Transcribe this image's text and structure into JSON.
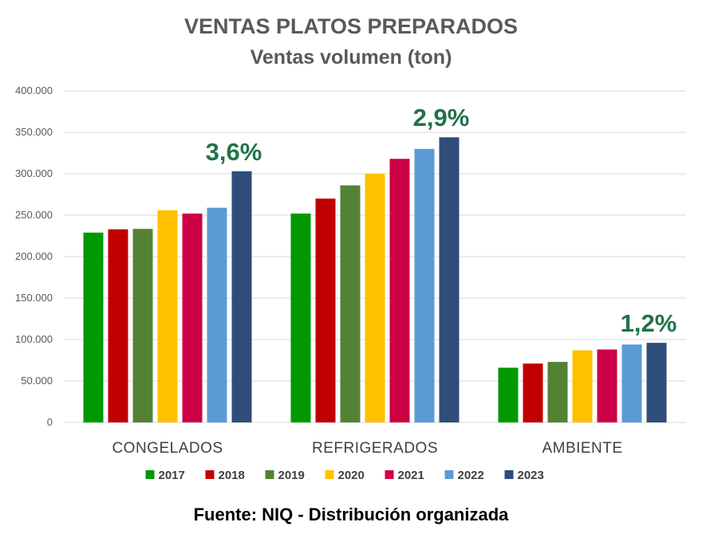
{
  "chart_data": {
    "type": "bar",
    "title": "VENTAS PLATOS PREPARADOS",
    "subtitle": "Ventas volumen (ton)",
    "categories": [
      "CONGELADOS",
      "REFRIGERADOS",
      "AMBIENTE"
    ],
    "series": [
      {
        "name": "2017",
        "color": "#009900",
        "values": [
          229000,
          252000,
          66000
        ]
      },
      {
        "name": "2018",
        "color": "#c00000",
        "values": [
          233000,
          270000,
          71000
        ]
      },
      {
        "name": "2019",
        "color": "#548235",
        "values": [
          233500,
          286000,
          73000
        ]
      },
      {
        "name": "2020",
        "color": "#ffc000",
        "values": [
          256000,
          300000,
          87000
        ]
      },
      {
        "name": "2021",
        "color": "#cc0044",
        "values": [
          252000,
          318000,
          88000
        ]
      },
      {
        "name": "2022",
        "color": "#5b9bd5",
        "values": [
          259000,
          330000,
          94000
        ]
      },
      {
        "name": "2023",
        "color": "#2e4d7b",
        "values": [
          303000,
          344000,
          96000
        ]
      }
    ],
    "ylim": [
      0,
      400000
    ],
    "yticks": [
      0,
      50000,
      100000,
      150000,
      200000,
      250000,
      300000,
      350000,
      400000
    ],
    "ytick_labels": [
      "0",
      "50.000",
      "100.000",
      "150.000",
      "200.000",
      "250.000",
      "300.000",
      "350.000",
      "400.000"
    ],
    "grid": true,
    "legend_position": "bottom",
    "annotations": [
      {
        "text": "3,6%",
        "category": "CONGELADOS",
        "color": "#217346"
      },
      {
        "text": "2,9%",
        "category": "REFRIGERADOS",
        "color": "#217346"
      },
      {
        "text": "1,2%",
        "category": "AMBIENTE",
        "color": "#217346"
      }
    ],
    "source": "Fuente: NIQ - Distribución organizada"
  }
}
